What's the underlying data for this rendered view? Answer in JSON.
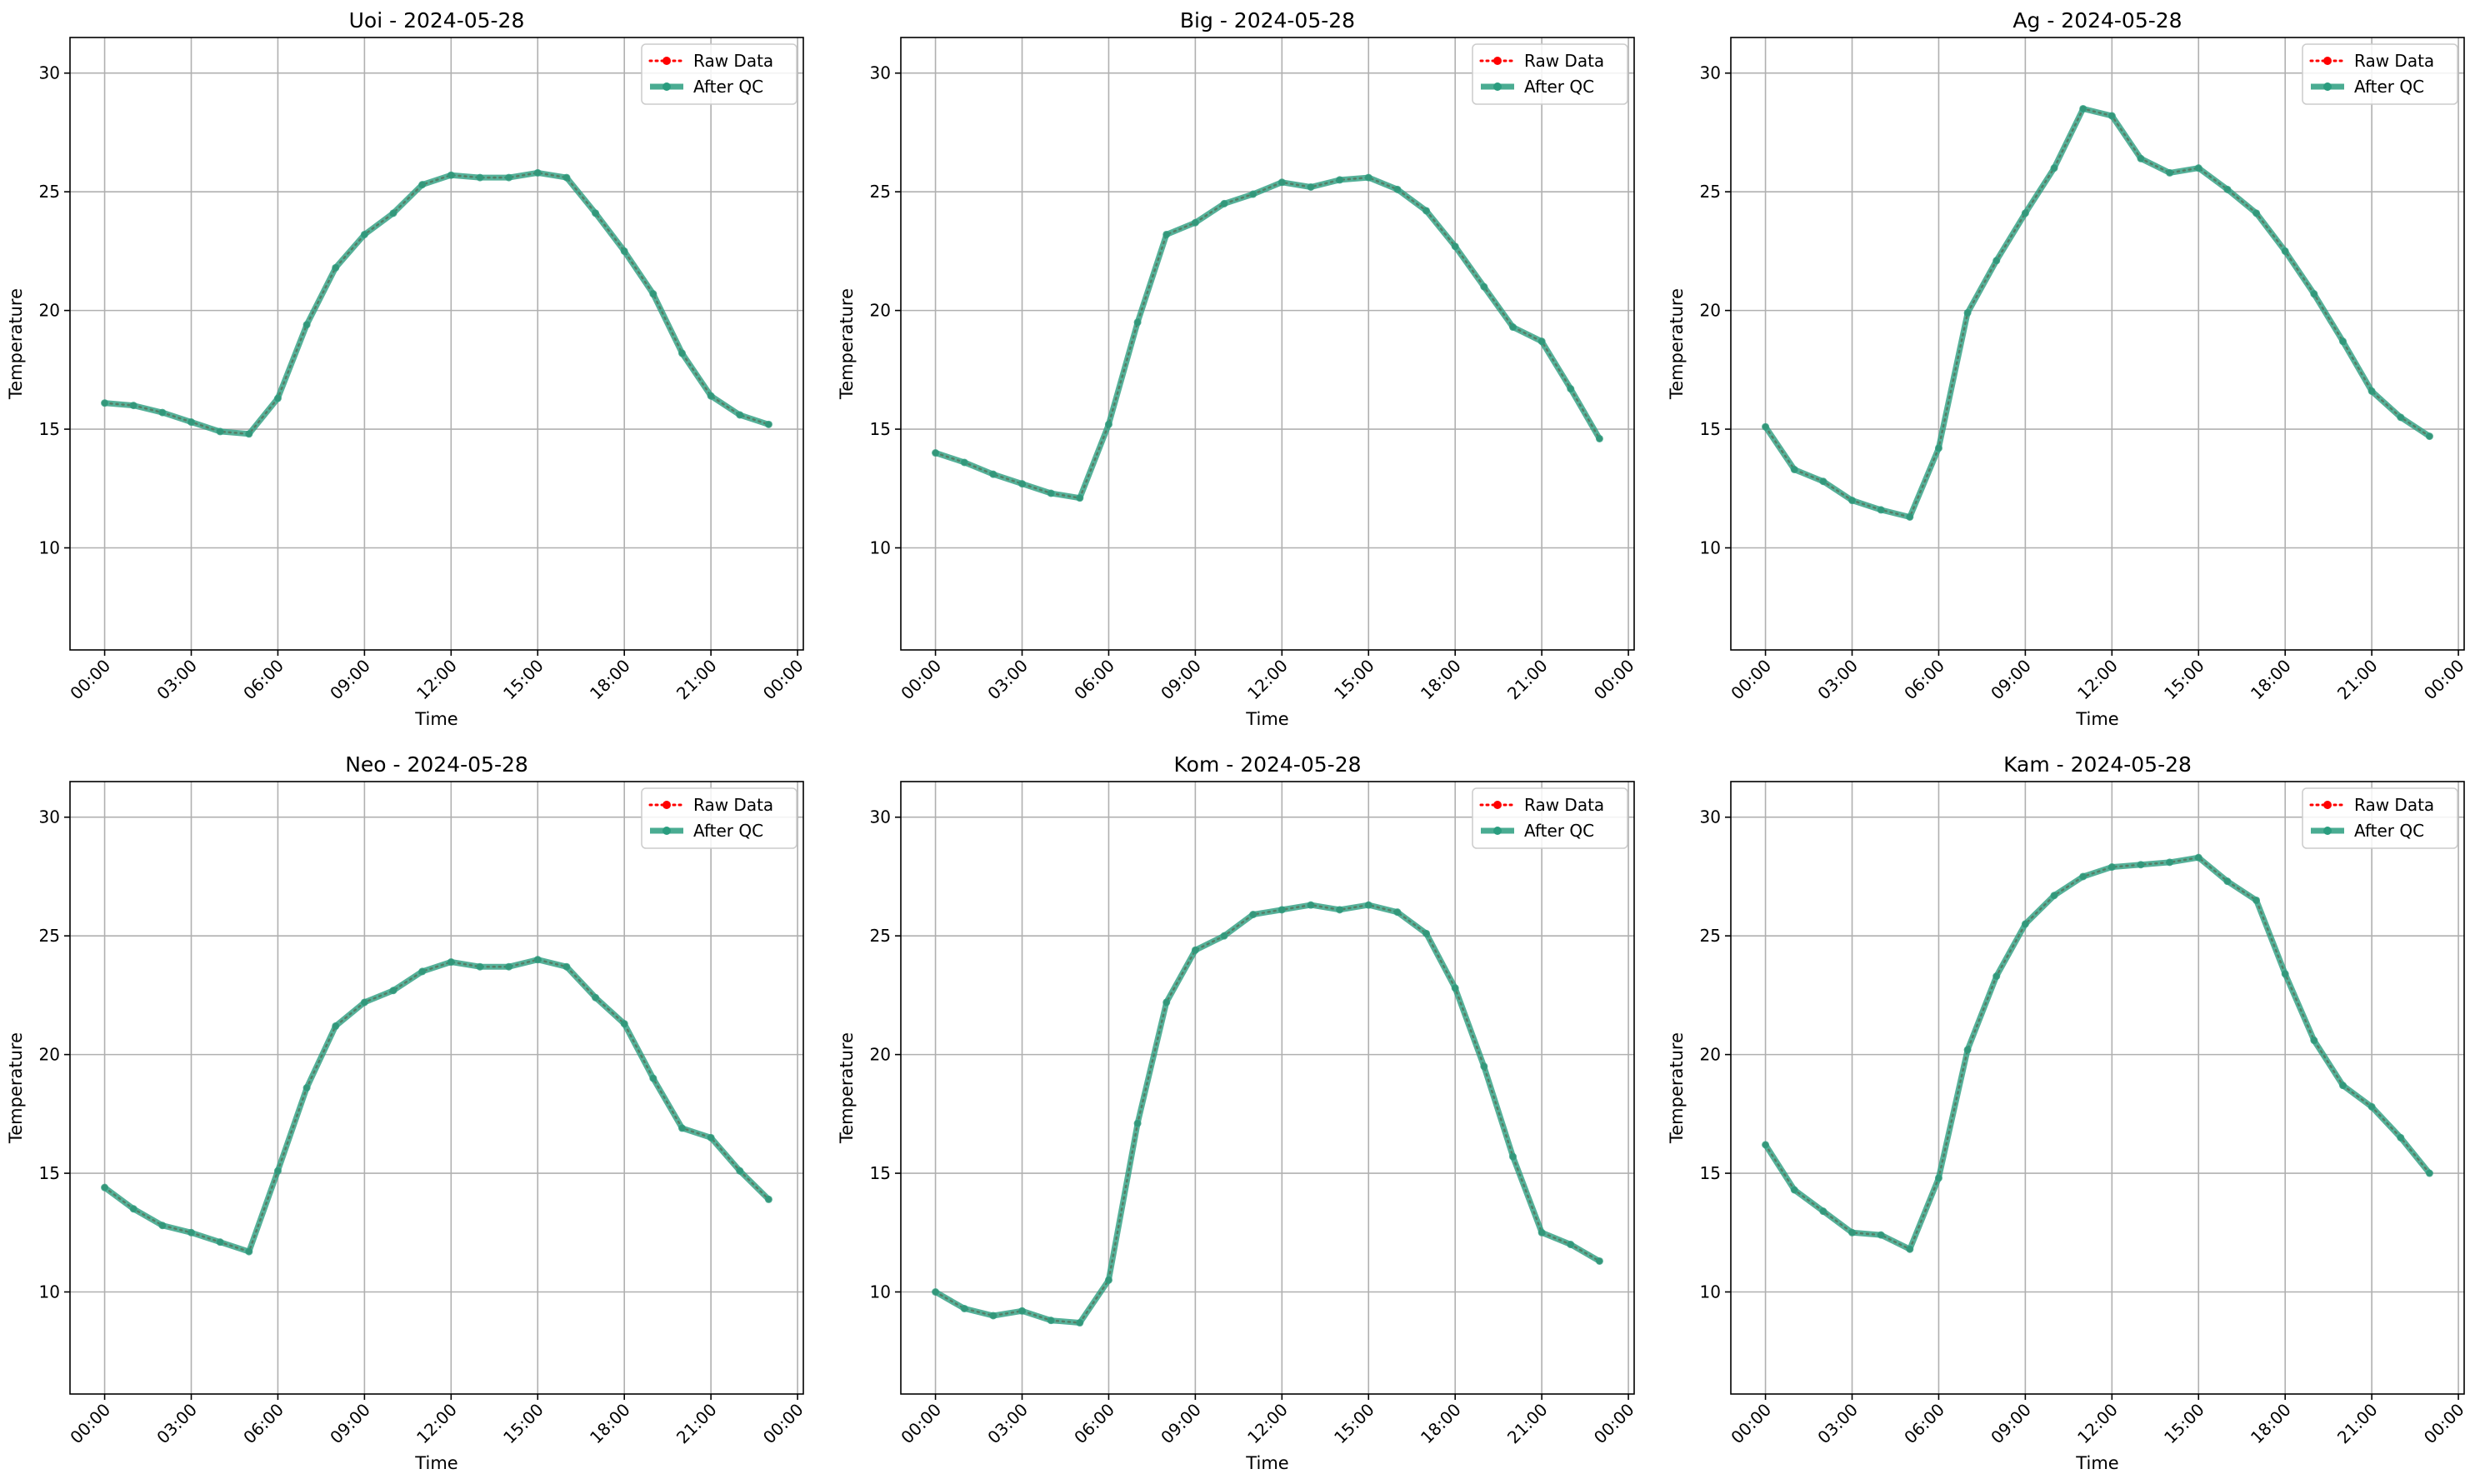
{
  "chart_data": [
    {
      "type": "line",
      "title": "Uoi - 2024-05-28",
      "xlabel": "Time",
      "ylabel": "Temperature",
      "ylim": [
        5.7,
        31.5
      ],
      "yticks": [
        10,
        15,
        20,
        25,
        30
      ],
      "xlim": [
        -1.2,
        24.2
      ],
      "xticks": [
        "00:00",
        "03:00",
        "06:00",
        "09:00",
        "12:00",
        "15:00",
        "18:00",
        "21:00",
        "00:00"
      ],
      "x_hours": [
        0,
        1,
        2,
        3,
        4,
        5,
        6,
        7,
        8,
        9,
        10,
        11,
        12,
        13,
        14,
        15,
        16,
        17,
        18,
        19,
        20,
        21,
        22,
        23
      ],
      "grid": true,
      "legend_position": "top-right",
      "series": [
        {
          "name": "Raw Data",
          "color": "#ff0000",
          "style": "dotted-markers",
          "values": [
            16.1,
            16.0,
            15.7,
            15.3,
            14.9,
            14.8,
            16.3,
            19.4,
            21.8,
            23.2,
            24.1,
            25.3,
            25.7,
            25.6,
            25.6,
            25.8,
            25.6,
            24.1,
            22.5,
            20.7,
            18.2,
            16.4,
            15.6,
            15.2
          ]
        },
        {
          "name": "After QC",
          "color": "#2a9d7f",
          "style": "solid-markers",
          "values": [
            16.1,
            16.0,
            15.7,
            15.3,
            14.9,
            14.8,
            16.3,
            19.4,
            21.8,
            23.2,
            24.1,
            25.3,
            25.7,
            25.6,
            25.6,
            25.8,
            25.6,
            24.1,
            22.5,
            20.7,
            18.2,
            16.4,
            15.6,
            15.2
          ]
        }
      ]
    },
    {
      "type": "line",
      "title": "Big - 2024-05-28",
      "xlabel": "Time",
      "ylabel": "Temperature",
      "ylim": [
        5.7,
        31.5
      ],
      "yticks": [
        10,
        15,
        20,
        25,
        30
      ],
      "xlim": [
        -1.2,
        24.2
      ],
      "xticks": [
        "00:00",
        "03:00",
        "06:00",
        "09:00",
        "12:00",
        "15:00",
        "18:00",
        "21:00",
        "00:00"
      ],
      "x_hours": [
        0,
        1,
        2,
        3,
        4,
        5,
        6,
        7,
        8,
        9,
        10,
        11,
        12,
        13,
        14,
        15,
        16,
        17,
        18,
        19,
        20,
        21,
        22,
        23
      ],
      "grid": true,
      "legend_position": "top-right",
      "series": [
        {
          "name": "Raw Data",
          "color": "#ff0000",
          "style": "dotted-markers",
          "values": [
            14.0,
            13.6,
            13.1,
            12.7,
            12.3,
            12.1,
            15.2,
            19.5,
            23.2,
            23.7,
            24.5,
            24.9,
            25.4,
            25.2,
            25.5,
            25.6,
            25.1,
            24.2,
            22.7,
            21.0,
            19.3,
            18.7,
            16.7,
            14.6
          ]
        },
        {
          "name": "After QC",
          "color": "#2a9d7f",
          "style": "solid-markers",
          "values": [
            14.0,
            13.6,
            13.1,
            12.7,
            12.3,
            12.1,
            15.2,
            19.5,
            23.2,
            23.7,
            24.5,
            24.9,
            25.4,
            25.2,
            25.5,
            25.6,
            25.1,
            24.2,
            22.7,
            21.0,
            19.3,
            18.7,
            16.7,
            14.6
          ]
        }
      ]
    },
    {
      "type": "line",
      "title": "Ag - 2024-05-28",
      "xlabel": "Time",
      "ylabel": "Temperature",
      "ylim": [
        5.7,
        31.5
      ],
      "yticks": [
        10,
        15,
        20,
        25,
        30
      ],
      "xlim": [
        -1.2,
        24.2
      ],
      "xticks": [
        "00:00",
        "03:00",
        "06:00",
        "09:00",
        "12:00",
        "15:00",
        "18:00",
        "21:00",
        "00:00"
      ],
      "x_hours": [
        0,
        1,
        2,
        3,
        4,
        5,
        6,
        7,
        8,
        9,
        10,
        11,
        12,
        13,
        14,
        15,
        16,
        17,
        18,
        19,
        20,
        21,
        22,
        23
      ],
      "grid": true,
      "legend_position": "top-right",
      "series": [
        {
          "name": "Raw Data",
          "color": "#ff0000",
          "style": "dotted-markers",
          "values": [
            15.1,
            13.3,
            12.8,
            12.0,
            11.6,
            11.3,
            14.2,
            19.9,
            22.1,
            24.1,
            26.0,
            28.5,
            28.2,
            26.4,
            25.8,
            26.0,
            25.1,
            24.1,
            22.5,
            20.7,
            18.7,
            16.6,
            15.5,
            14.7
          ]
        },
        {
          "name": "After QC",
          "color": "#2a9d7f",
          "style": "solid-markers",
          "values": [
            15.1,
            13.3,
            12.8,
            12.0,
            11.6,
            11.3,
            14.2,
            19.9,
            22.1,
            24.1,
            26.0,
            28.5,
            28.2,
            26.4,
            25.8,
            26.0,
            25.1,
            24.1,
            22.5,
            20.7,
            18.7,
            16.6,
            15.5,
            14.7
          ]
        }
      ]
    },
    {
      "type": "line",
      "title": "Neo - 2024-05-28",
      "xlabel": "Time",
      "ylabel": "Temperature",
      "ylim": [
        5.7,
        31.5
      ],
      "yticks": [
        10,
        15,
        20,
        25,
        30
      ],
      "xlim": [
        -1.2,
        24.2
      ],
      "xticks": [
        "00:00",
        "03:00",
        "06:00",
        "09:00",
        "12:00",
        "15:00",
        "18:00",
        "21:00",
        "00:00"
      ],
      "x_hours": [
        0,
        1,
        2,
        3,
        4,
        5,
        6,
        7,
        8,
        9,
        10,
        11,
        12,
        13,
        14,
        15,
        16,
        17,
        18,
        19,
        20,
        21,
        22,
        23
      ],
      "grid": true,
      "legend_position": "top-right",
      "series": [
        {
          "name": "Raw Data",
          "color": "#ff0000",
          "style": "dotted-markers",
          "values": [
            14.4,
            13.5,
            12.8,
            12.5,
            12.1,
            11.7,
            15.1,
            18.6,
            21.2,
            22.2,
            22.7,
            23.5,
            23.9,
            23.7,
            23.7,
            24.0,
            23.7,
            22.4,
            21.3,
            19.0,
            16.9,
            16.5,
            15.1,
            13.9
          ]
        },
        {
          "name": "After QC",
          "color": "#2a9d7f",
          "style": "solid-markers",
          "values": [
            14.4,
            13.5,
            12.8,
            12.5,
            12.1,
            11.7,
            15.1,
            18.6,
            21.2,
            22.2,
            22.7,
            23.5,
            23.9,
            23.7,
            23.7,
            24.0,
            23.7,
            22.4,
            21.3,
            19.0,
            16.9,
            16.5,
            15.1,
            13.9
          ]
        }
      ]
    },
    {
      "type": "line",
      "title": "Kom - 2024-05-28",
      "xlabel": "Time",
      "ylabel": "Temperature",
      "ylim": [
        5.7,
        31.5
      ],
      "yticks": [
        10,
        15,
        20,
        25,
        30
      ],
      "xlim": [
        -1.2,
        24.2
      ],
      "xticks": [
        "00:00",
        "03:00",
        "06:00",
        "09:00",
        "12:00",
        "15:00",
        "18:00",
        "21:00",
        "00:00"
      ],
      "x_hours": [
        0,
        1,
        2,
        3,
        4,
        5,
        6,
        7,
        8,
        9,
        10,
        11,
        12,
        13,
        14,
        15,
        16,
        17,
        18,
        19,
        20,
        21,
        22,
        23
      ],
      "grid": true,
      "legend_position": "top-right",
      "series": [
        {
          "name": "Raw Data",
          "color": "#ff0000",
          "style": "dotted-markers",
          "values": [
            10.0,
            9.3,
            9.0,
            9.2,
            8.8,
            8.7,
            10.5,
            17.1,
            22.2,
            24.4,
            25.0,
            25.9,
            26.1,
            26.3,
            26.1,
            26.3,
            26.0,
            25.1,
            22.8,
            19.5,
            15.7,
            12.5,
            12.0,
            11.3
          ]
        },
        {
          "name": "After QC",
          "color": "#2a9d7f",
          "style": "solid-markers",
          "values": [
            10.0,
            9.3,
            9.0,
            9.2,
            8.8,
            8.7,
            10.5,
            17.1,
            22.2,
            24.4,
            25.0,
            25.9,
            26.1,
            26.3,
            26.1,
            26.3,
            26.0,
            25.1,
            22.8,
            19.5,
            15.7,
            12.5,
            12.0,
            11.3
          ]
        }
      ]
    },
    {
      "type": "line",
      "title": "Kam - 2024-05-28",
      "xlabel": "Time",
      "ylabel": "Temperature",
      "ylim": [
        5.7,
        31.5
      ],
      "yticks": [
        10,
        15,
        20,
        25,
        30
      ],
      "xlim": [
        -1.2,
        24.2
      ],
      "xticks": [
        "00:00",
        "03:00",
        "06:00",
        "09:00",
        "12:00",
        "15:00",
        "18:00",
        "21:00",
        "00:00"
      ],
      "x_hours": [
        0,
        1,
        2,
        3,
        4,
        5,
        6,
        7,
        8,
        9,
        10,
        11,
        12,
        13,
        14,
        15,
        16,
        17,
        18,
        19,
        20,
        21,
        22,
        23
      ],
      "grid": true,
      "legend_position": "top-right",
      "series": [
        {
          "name": "Raw Data",
          "color": "#ff0000",
          "style": "dotted-markers",
          "values": [
            16.2,
            14.3,
            13.4,
            12.5,
            12.4,
            11.8,
            14.8,
            20.2,
            23.3,
            25.5,
            26.7,
            27.5,
            27.9,
            28.0,
            28.1,
            28.3,
            27.3,
            26.5,
            23.4,
            20.6,
            18.7,
            17.8,
            16.5,
            15.0
          ]
        },
        {
          "name": "After QC",
          "color": "#2a9d7f",
          "style": "solid-markers",
          "values": [
            16.2,
            14.3,
            13.4,
            12.5,
            12.4,
            11.8,
            14.8,
            20.2,
            23.3,
            25.5,
            26.7,
            27.5,
            27.9,
            28.0,
            28.1,
            28.3,
            27.3,
            26.5,
            23.4,
            20.6,
            18.7,
            17.8,
            16.5,
            15.0
          ]
        }
      ]
    }
  ]
}
